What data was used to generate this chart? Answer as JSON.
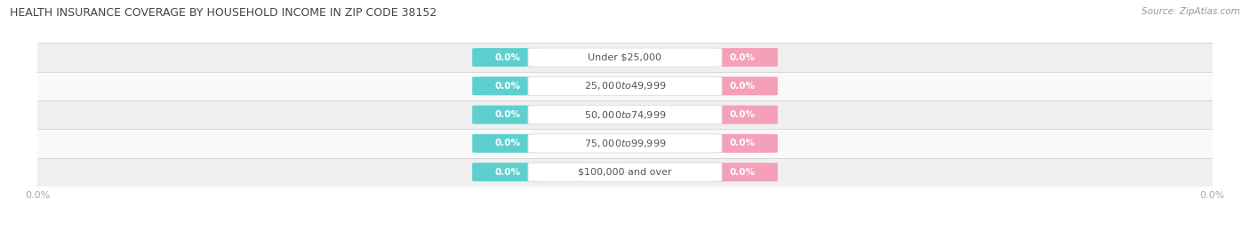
{
  "title": "HEALTH INSURANCE COVERAGE BY HOUSEHOLD INCOME IN ZIP CODE 38152",
  "source": "Source: ZipAtlas.com",
  "categories": [
    "Under $25,000",
    "$25,000 to $49,999",
    "$50,000 to $74,999",
    "$75,000 to $99,999",
    "$100,000 and over"
  ],
  "with_coverage": [
    0.0,
    0.0,
    0.0,
    0.0,
    0.0
  ],
  "without_coverage": [
    0.0,
    0.0,
    0.0,
    0.0,
    0.0
  ],
  "with_coverage_color": "#5ecfcf",
  "without_coverage_color": "#f4a0b8",
  "row_bg_colors": [
    "#efefef",
    "#f9f9f9"
  ],
  "title_color": "#444444",
  "source_color": "#999999",
  "label_color_with": "#ffffff",
  "label_color_without": "#ffffff",
  "category_label_color": "#555555",
  "axis_label_color": "#aaaaaa",
  "xlim": [
    -1.0,
    1.0
  ],
  "figsize": [
    14.06,
    2.69
  ],
  "dpi": 100
}
